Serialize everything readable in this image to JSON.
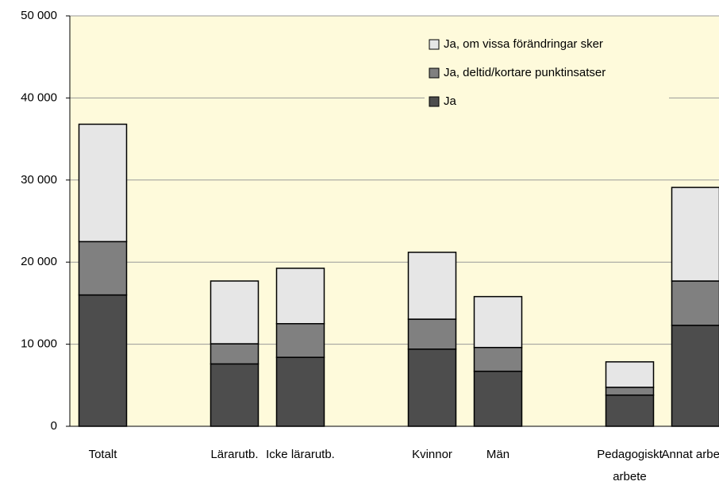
{
  "chart_data": {
    "type": "stacked_bar",
    "categories": [
      "Totalt",
      null,
      "Lärarutb.",
      "Icke lärarutb.",
      null,
      "Kvinnor",
      "Män",
      null,
      "Pedagogiskt arbete",
      "Annat arbete"
    ],
    "series": [
      {
        "name": "Ja",
        "color": "#4d4d4d",
        "values": [
          16000,
          null,
          7600,
          8400,
          null,
          9400,
          6700,
          null,
          3800,
          12300
        ]
      },
      {
        "name": "Ja, deltid/kortare punktinsatser",
        "color": "#808080",
        "values": [
          6500,
          null,
          2450,
          4100,
          null,
          3650,
          2900,
          null,
          950,
          5400
        ]
      },
      {
        "name": "Ja, om vissa förändringar sker",
        "color": "#e6e6e6",
        "values": [
          14300,
          null,
          7650,
          6750,
          null,
          8150,
          6200,
          null,
          3100,
          11400
        ]
      }
    ],
    "ylim": [
      0,
      50000
    ],
    "yticks": [
      0,
      {
        "value": 10000,
        "label": "10 000"
      },
      {
        "value": 20000,
        "label": "20 000"
      },
      {
        "value": 30000,
        "label": "30 000"
      },
      {
        "value": 40000,
        "label": "40 000"
      },
      {
        "value": 50000,
        "label": "50 000"
      }
    ],
    "grid": true,
    "legend": "upper right",
    "background": "#fefadb"
  }
}
